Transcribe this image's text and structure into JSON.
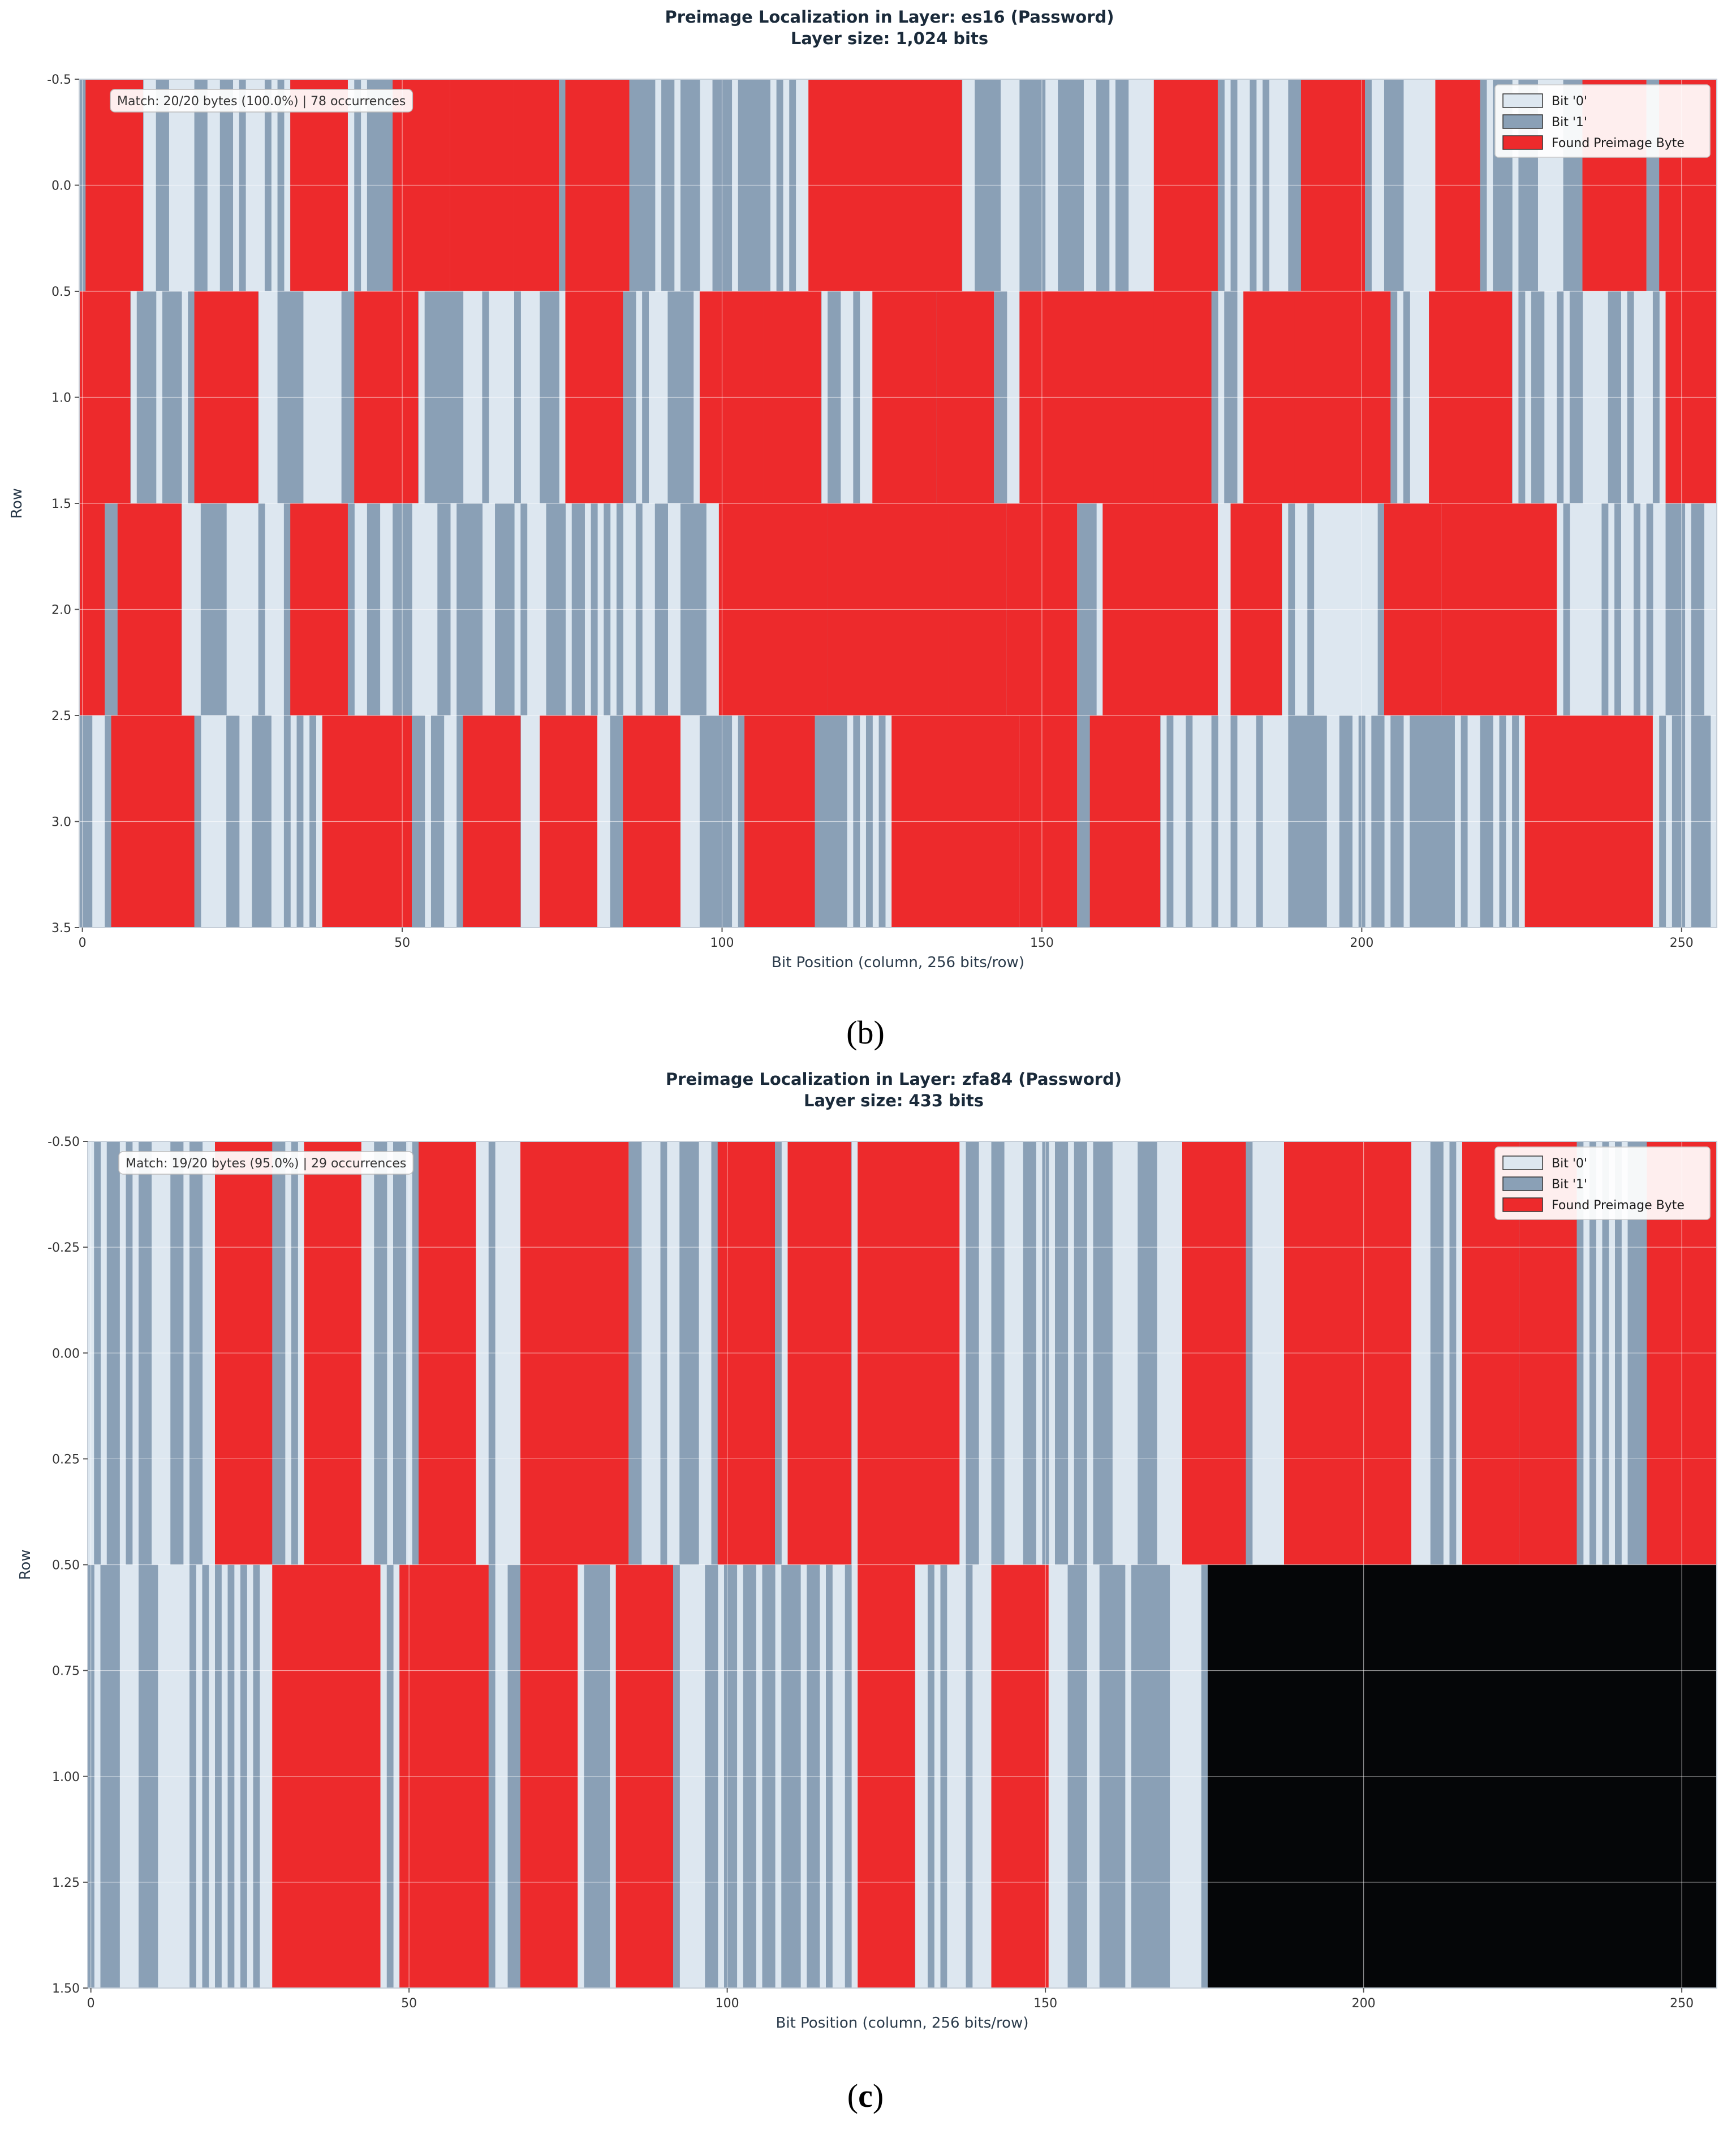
{
  "colors": {
    "bit0": "#dde7f0",
    "bit1": "#8aa0b6",
    "found": "#ed2a2c",
    "empty": "#050608",
    "grid": "#ffffff"
  },
  "chart_data": [
    {
      "type": "heatmap",
      "panel": "(b)",
      "title": "Preimage Localization in Layer: es16 (Password)",
      "subtitle": "Layer size: 1,024 bits",
      "xlabel": "Bit Position (column, 256 bits/row)",
      "ylabel": "Row",
      "xlim": [
        -0.5,
        255.5
      ],
      "ylim": [
        3.5,
        -0.5
      ],
      "xticks": [
        0,
        50,
        100,
        150,
        200,
        250
      ],
      "yticks": [
        -0.5,
        0.0,
        0.5,
        1.0,
        1.5,
        2.0,
        2.5,
        3.0,
        3.5
      ],
      "ytick_labels": [
        "-0.5",
        "0.0",
        "0.5",
        "1.0",
        "1.5",
        "2.0",
        "2.5",
        "3.0",
        "3.5"
      ],
      "rows": 4,
      "bits_per_row": 256,
      "annotation": "Match: 20/20 bytes (100.0%) | 78 occurrences",
      "legend": {
        "position": "upper right",
        "entries": [
          "Bit '0'",
          "Bit '1'",
          "Found Preimage Byte"
        ]
      },
      "grid": true,
      "found_ranges": [
        [
          [
            1,
            9
          ],
          [
            33,
            41
          ],
          [
            49,
            57
          ],
          [
            58,
            61
          ],
          [
            59,
            67
          ],
          [
            68,
            74
          ],
          [
            76,
            85
          ],
          [
            114,
            123
          ],
          [
            122,
            131
          ],
          [
            130,
            137
          ],
          [
            168,
            177
          ],
          [
            191,
            200
          ],
          [
            212,
            218
          ],
          [
            235,
            244
          ],
          [
            247,
            251
          ],
          [
            251,
            255
          ]
        ],
        [
          [
            -1,
            7
          ],
          [
            18,
            27
          ],
          [
            43,
            52
          ],
          [
            76,
            84
          ],
          [
            97,
            106
          ],
          [
            107,
            115
          ],
          [
            124,
            133
          ],
          [
            134,
            142
          ],
          [
            147,
            156
          ],
          [
            154,
            163
          ],
          [
            160,
            169
          ],
          [
            168,
            176
          ],
          [
            182,
            191
          ],
          [
            190,
            199
          ],
          [
            198,
            204
          ],
          [
            211,
            223
          ],
          [
            248,
            256
          ]
        ],
        [
          [
            -1,
            3
          ],
          [
            6,
            15
          ],
          [
            33,
            41
          ],
          [
            100,
            108
          ],
          [
            108,
            116
          ],
          [
            117,
            125
          ],
          [
            125,
            135
          ],
          [
            136,
            144
          ],
          [
            145,
            155
          ],
          [
            160,
            169
          ],
          [
            169,
            177
          ],
          [
            180,
            187
          ],
          [
            204,
            212
          ],
          [
            213,
            222
          ],
          [
            218,
            230
          ]
        ],
        [
          [
            5,
            17
          ],
          [
            38,
            47
          ],
          [
            47,
            51
          ],
          [
            60,
            68
          ],
          [
            72,
            80
          ],
          [
            85,
            93
          ],
          [
            104,
            114
          ],
          [
            127,
            137
          ],
          [
            137,
            146
          ],
          [
            147,
            155
          ],
          [
            158,
            168
          ],
          [
            226,
            235
          ],
          [
            235,
            245
          ]
        ]
      ],
      "empty_ranges": [
        [],
        [],
        [],
        []
      ]
    },
    {
      "type": "heatmap",
      "panel": "(c)",
      "title": "Preimage Localization in Layer: zfa84 (Password)",
      "subtitle": "Layer size: 433 bits",
      "xlabel": "Bit Position (column, 256 bits/row)",
      "ylabel": "Row",
      "xlim": [
        -0.5,
        255.5
      ],
      "ylim": [
        1.5,
        -0.5
      ],
      "xticks": [
        0,
        50,
        100,
        150,
        200,
        250
      ],
      "yticks": [
        -0.5,
        -0.25,
        0.0,
        0.25,
        0.5,
        0.75,
        1.0,
        1.25,
        1.5
      ],
      "ytick_labels": [
        "-0.50",
        "-0.25",
        "0.00",
        "0.25",
        "0.50",
        "0.75",
        "1.00",
        "1.25",
        "1.50"
      ],
      "rows": 2,
      "bits_per_row": 256,
      "annotation": "Match: 19/20 bytes (95.0%) | 29 occurrences",
      "legend": {
        "position": "upper right",
        "entries": [
          "Bit '0'",
          "Bit '1'",
          "Found Preimage Byte"
        ]
      },
      "grid": true,
      "found_ranges": [
        [
          [
            20,
            28
          ],
          [
            34,
            42
          ],
          [
            52,
            60
          ],
          [
            68,
            84
          ],
          [
            99,
            107
          ],
          [
            110,
            119
          ],
          [
            121,
            129
          ],
          [
            129,
            136
          ],
          [
            172,
            181
          ],
          [
            188,
            196
          ],
          [
            196,
            207
          ],
          [
            216,
            224
          ],
          [
            225,
            233
          ],
          [
            245,
            255
          ]
        ],
        [
          [
            29,
            36
          ],
          [
            36,
            45
          ],
          [
            49,
            56
          ],
          [
            56,
            62
          ],
          [
            68,
            76
          ],
          [
            83,
            91
          ],
          [
            121,
            129
          ],
          [
            142,
            150
          ]
        ]
      ],
      "empty_ranges": [
        [],
        [
          [
            176,
            256
          ]
        ]
      ]
    }
  ],
  "panel_labels": {
    "b": "(b)",
    "c_open": "(",
    "c_letter": "c",
    "c_close": ")"
  }
}
